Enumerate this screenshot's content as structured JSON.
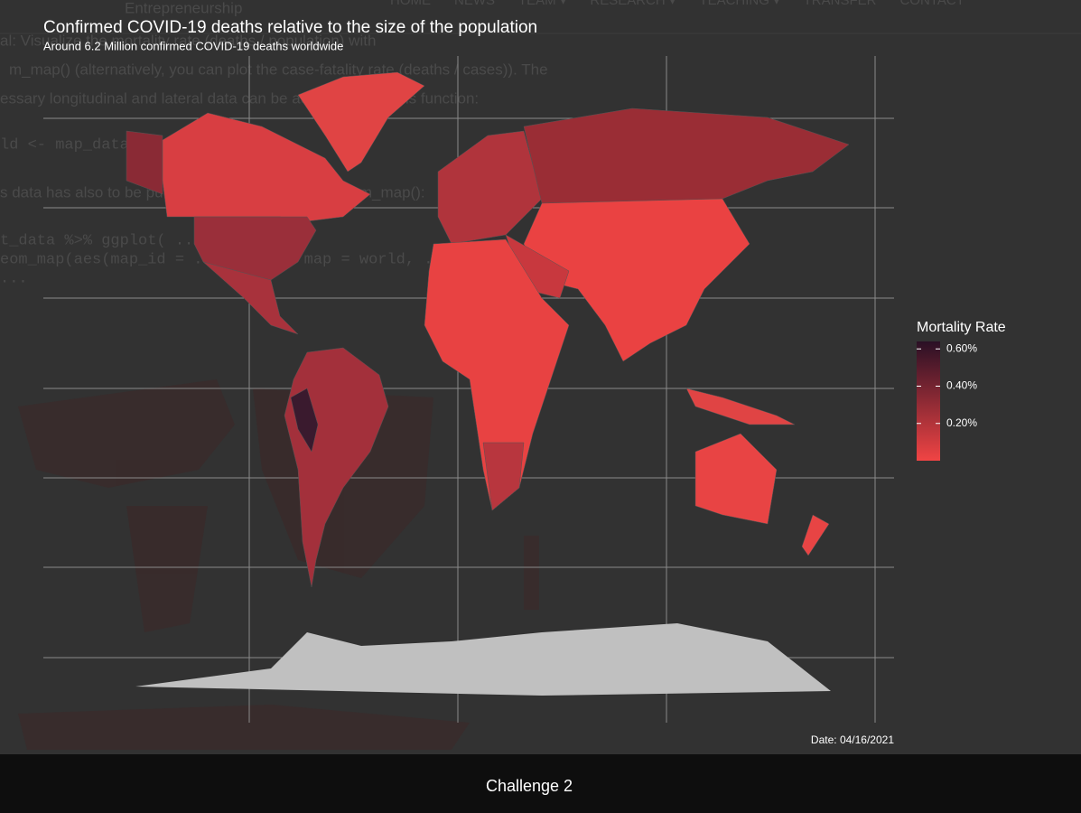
{
  "background": {
    "brand": "Entrepreneurship",
    "nav": [
      "HOME",
      "NEWS",
      "TEAM ▾",
      "RESEARCH ▾",
      "TEACHING ▾",
      "TRANSFER",
      "CONTACT"
    ],
    "text_lines": [
      "al: Visualize the mortality rate (deaths / population) with",
      "m_map() (alternatively, you can plot the case-fatality rate (deaths / cases)). The",
      "essary longitudinal and lateral data can be accessed with this function:",
      "ld <- map_data(\"world\")",
      "s data has also to be put in the map argument of geom_map():",
      "t_data %>% ggplot( ... ) +",
      "eom_map(aes(map_id = ..., ... ), map = world, ... ) +",
      "..."
    ]
  },
  "chart_data": {
    "type": "choropleth",
    "title": "Confirmed COVID-19 deaths relative to the size of the population",
    "subtitle": "Around 6.2 Million confirmed COVID-19 deaths worldwide",
    "legend_title": "Mortality Rate",
    "clim": [
      0,
      0.64
    ],
    "colors": [
      "#f04444",
      "#2a1025"
    ],
    "cticks": [
      {
        "value": 0.6,
        "label": "0.60%"
      },
      {
        "value": 0.4,
        "label": "0.40%"
      },
      {
        "value": 0.2,
        "label": "0.20%"
      }
    ],
    "caption": "Date: 04/16/2021"
  },
  "lightbox": {
    "caption": "Challenge 2"
  }
}
